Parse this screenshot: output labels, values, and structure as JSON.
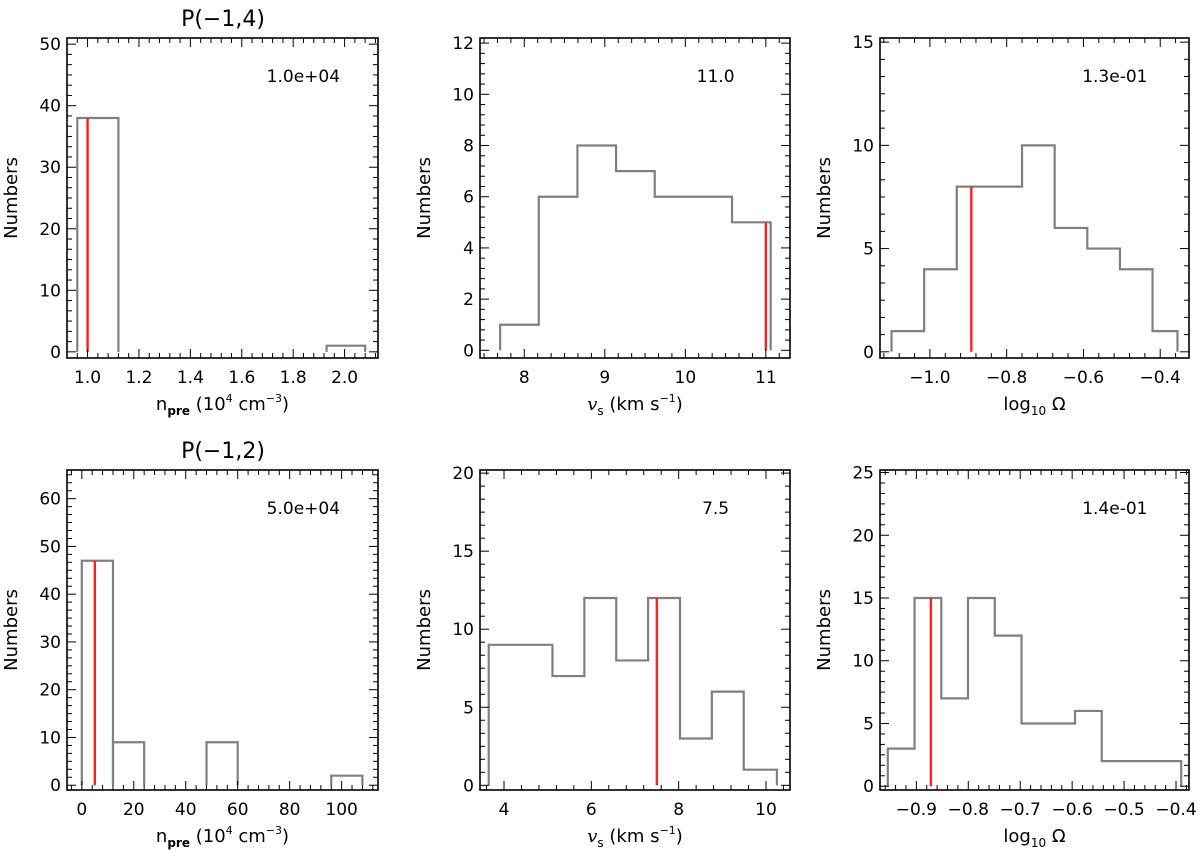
{
  "chart_data": [
    {
      "type": "bar",
      "title": "P(−1,4)",
      "xlabel": "n_pre (10^4 cm^-3)",
      "ylabel": "Numbers",
      "annotation": "1.0e+04",
      "xlim": [
        0.92,
        2.13
      ],
      "ylim": [
        -1,
        51
      ],
      "xticks": [
        1.0,
        1.2,
        1.4,
        1.6,
        1.8,
        2.0
      ],
      "xticklabels": [
        "1.0",
        "1.2",
        "1.4",
        "1.6",
        "1.8",
        "2.0"
      ],
      "xminor": 4,
      "yticks": [
        0,
        10,
        20,
        30,
        40,
        50
      ],
      "yticklabels": [
        "0",
        "10",
        "20",
        "30",
        "40",
        "50"
      ],
      "yminor": 5,
      "histogram": {
        "type": "bars",
        "bars": [
          {
            "x0": 0.96,
            "x1": 1.12,
            "y": 38
          },
          {
            "x0": 1.93,
            "x1": 2.08,
            "y": 1
          }
        ]
      },
      "marker_x": 1.0,
      "marker_y": 38,
      "colors": {
        "histogram": "#808080",
        "marker": "#ff2020"
      }
    },
    {
      "type": "bar",
      "title": "",
      "xlabel": "v_s (km s^-1)",
      "ylabel": "Numbers",
      "annotation": "11.0",
      "xlim": [
        7.45,
        11.3
      ],
      "ylim": [
        -0.3,
        12.2
      ],
      "xticks": [
        8,
        9,
        10,
        11
      ],
      "xticklabels": [
        "8",
        "9",
        "10",
        "11"
      ],
      "xminor": 5,
      "yticks": [
        0,
        2,
        4,
        6,
        8,
        10,
        12
      ],
      "yticklabels": [
        "0",
        "2",
        "4",
        "6",
        "8",
        "10",
        "12"
      ],
      "yminor": 4,
      "histogram": {
        "type": "step",
        "edges": [
          7.7,
          8.18,
          8.66,
          9.14,
          9.62,
          10.1,
          10.58,
          11.06
        ],
        "values": [
          1,
          6,
          8,
          7,
          6,
          6,
          5
        ]
      },
      "marker_x": 11.0,
      "marker_y": 5,
      "colors": {
        "histogram": "#808080",
        "marker": "#ff2020"
      }
    },
    {
      "type": "bar",
      "title": "",
      "xlabel": "log10 Ω",
      "ylabel": "Numbers",
      "annotation": "1.3e-01",
      "xlim": [
        -1.13,
        -0.325
      ],
      "ylim": [
        -0.3,
        15.2
      ],
      "xticks": [
        -1.0,
        -0.8,
        -0.6,
        -0.4
      ],
      "xticklabels": [
        "−1.0",
        "−0.8",
        "−0.6",
        "−0.4"
      ],
      "xminor": 4,
      "yticks": [
        0,
        5,
        10,
        15
      ],
      "yticklabels": [
        "0",
        "5",
        "10",
        "15"
      ],
      "yminor": 5,
      "histogram": {
        "type": "step",
        "edges": [
          -1.1,
          -1.015,
          -0.93,
          -0.845,
          -0.76,
          -0.675,
          -0.59,
          -0.505,
          -0.42,
          -0.355
        ],
        "values": [
          1,
          4,
          8,
          8,
          10,
          6,
          5,
          4,
          1
        ]
      },
      "marker_x": -0.892,
      "marker_y": 8,
      "colors": {
        "histogram": "#808080",
        "marker": "#ff2020"
      }
    },
    {
      "type": "bar",
      "title": "P(−1,2)",
      "xlabel": "n_pre (10^4 cm^-3)",
      "ylabel": "Numbers",
      "annotation": "5.0e+04",
      "xlim": [
        -5.7,
        114
      ],
      "ylim": [
        -1,
        66
      ],
      "xticks": [
        0,
        20,
        40,
        60,
        80,
        100
      ],
      "xticklabels": [
        "0",
        "20",
        "40",
        "60",
        "80",
        "100"
      ],
      "xminor": 4,
      "yticks": [
        0,
        10,
        20,
        30,
        40,
        50,
        60
      ],
      "yticklabels": [
        "0",
        "10",
        "20",
        "30",
        "40",
        "50",
        "60"
      ],
      "yminor": 5,
      "histogram": {
        "type": "bars",
        "bars": [
          {
            "x0": 0,
            "x1": 12,
            "y": 47
          },
          {
            "x0": 12,
            "x1": 24,
            "y": 9
          },
          {
            "x0": 48,
            "x1": 60,
            "y": 9
          },
          {
            "x0": 96,
            "x1": 108,
            "y": 2
          }
        ]
      },
      "marker_x": 5.0,
      "marker_y": 47,
      "colors": {
        "histogram": "#808080",
        "marker": "#ff2020"
      }
    },
    {
      "type": "bar",
      "title": "",
      "xlabel": "v_s (km s^-1)",
      "ylabel": "Numbers",
      "annotation": "7.5",
      "xlim": [
        3.45,
        10.55
      ],
      "ylim": [
        -0.3,
        20.2
      ],
      "xticks": [
        4,
        6,
        8,
        10
      ],
      "xticklabels": [
        "4",
        "6",
        "8",
        "10"
      ],
      "xminor": 4,
      "yticks": [
        0,
        5,
        10,
        15,
        20
      ],
      "yticklabels": [
        "0",
        "5",
        "10",
        "15",
        "20"
      ],
      "yminor": 5,
      "histogram": {
        "type": "step",
        "edges": [
          3.65,
          4.38,
          5.11,
          5.84,
          6.57,
          7.3,
          8.03,
          8.76,
          9.49,
          10.25
        ],
        "values": [
          9,
          9,
          7,
          12,
          8,
          12,
          3,
          6,
          1
        ]
      },
      "marker_x": 7.5,
      "marker_y": 12,
      "colors": {
        "histogram": "#808080",
        "marker": "#ff2020"
      }
    },
    {
      "type": "bar",
      "title": "",
      "xlabel": "log10 Ω",
      "ylabel": "Numbers",
      "annotation": "1.4e-01",
      "xlim": [
        -0.97,
        -0.375
      ],
      "ylim": [
        -0.3,
        25.2
      ],
      "xticks": [
        -0.9,
        -0.8,
        -0.7,
        -0.6,
        -0.5,
        -0.4
      ],
      "xticklabels": [
        "−0.9",
        "−0.8",
        "−0.7",
        "−0.6",
        "−0.5",
        "−0.4"
      ],
      "xminor": 4,
      "yticks": [
        0,
        5,
        10,
        15,
        20,
        25
      ],
      "yticklabels": [
        "0",
        "5",
        "10",
        "15",
        "20",
        "25"
      ],
      "yminor": 5,
      "histogram": {
        "type": "step",
        "edges": [
          -0.955,
          -0.9035,
          -0.852,
          -0.8005,
          -0.749,
          -0.6975,
          -0.646,
          -0.5945,
          -0.543,
          -0.4915,
          -0.39
        ],
        "values": [
          3,
          15,
          7,
          15,
          12,
          5,
          5,
          6,
          2,
          2
        ]
      },
      "marker_x": -0.872,
      "marker_y": 15,
      "colors": {
        "histogram": "#808080",
        "marker": "#ff2020"
      }
    }
  ]
}
